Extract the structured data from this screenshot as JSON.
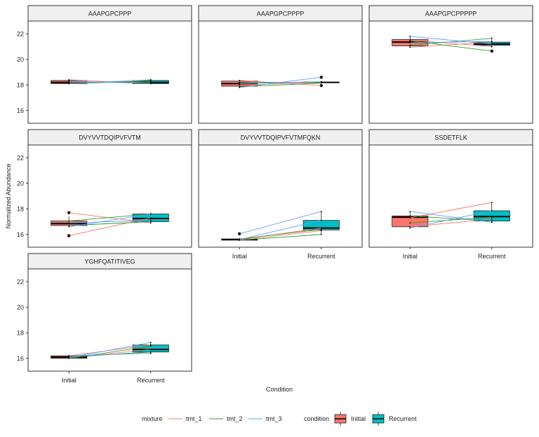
{
  "figure": {
    "xlabel": "Condition",
    "ylabel": "Normalized Abundance"
  },
  "legend": {
    "mixture_title": "mixture",
    "mixture": [
      {
        "name": "tmt_1",
        "color": "#f8766d"
      },
      {
        "name": "tmt_2",
        "color": "#2ca02c"
      },
      {
        "name": "tmt_3",
        "color": "#619cff"
      }
    ],
    "condition_title": "condition",
    "conditions": [
      {
        "name": "Initial",
        "color": "#f8766d"
      },
      {
        "name": "Recurrent",
        "color": "#00bfc4"
      }
    ]
  },
  "chart_data": [
    {
      "type": "boxplot",
      "title": "AAAPGPCPPP",
      "categories": [
        "Initial",
        "Recurrent"
      ],
      "ylim": [
        15,
        23
      ],
      "yticks": [
        16,
        18,
        20,
        22
      ],
      "boxes": [
        {
          "condition": "Initial",
          "min": 18.1,
          "q1": 18.1,
          "median": 18.2,
          "q3": 18.35,
          "max": 18.45,
          "outliers": []
        },
        {
          "condition": "Recurrent",
          "min": 18.05,
          "q1": 18.1,
          "median": 18.2,
          "q3": 18.35,
          "max": 18.45,
          "outliers": []
        }
      ],
      "lines": [
        {
          "mixture": "tmt_1",
          "from": 18.4,
          "to": 18.1
        },
        {
          "mixture": "tmt_1",
          "from": 18.2,
          "to": 18.3
        },
        {
          "mixture": "tmt_2",
          "from": 18.25,
          "to": 18.2
        },
        {
          "mixture": "tmt_2",
          "from": 18.1,
          "to": 18.3
        },
        {
          "mixture": "tmt_3",
          "from": 18.1,
          "to": 18.4
        },
        {
          "mixture": "tmt_3",
          "from": 18.3,
          "to": 18.1
        }
      ]
    },
    {
      "type": "boxplot",
      "title": "AAAPGPCPPPP",
      "categories": [
        "Initial",
        "Recurrent"
      ],
      "ylim": [
        15,
        23
      ],
      "yticks": [
        16,
        18,
        20,
        22
      ],
      "boxes": [
        {
          "condition": "Initial",
          "min": 17.75,
          "q1": 17.9,
          "median": 18.1,
          "q3": 18.3,
          "max": 18.4,
          "outliers": []
        },
        {
          "condition": "Recurrent",
          "min": 18.2,
          "q1": 18.2,
          "median": 18.2,
          "q3": 18.2,
          "max": 18.2,
          "outliers": [
            18.6,
            17.95
          ]
        }
      ],
      "lines": [
        {
          "mixture": "tmt_1",
          "from": 18.35,
          "to": 17.95
        },
        {
          "mixture": "tmt_1",
          "from": 18.0,
          "to": 18.2
        },
        {
          "mixture": "tmt_2",
          "from": 18.2,
          "to": 18.2
        },
        {
          "mixture": "tmt_2",
          "from": 17.85,
          "to": 18.15
        },
        {
          "mixture": "tmt_3",
          "from": 17.8,
          "to": 18.6
        },
        {
          "mixture": "tmt_3",
          "from": 18.1,
          "to": 18.25
        }
      ]
    },
    {
      "type": "boxplot",
      "title": "AAAPGPCPPPPP",
      "categories": [
        "Initial",
        "Recurrent"
      ],
      "ylim": [
        15,
        23
      ],
      "yticks": [
        16,
        18,
        20,
        22
      ],
      "boxes": [
        {
          "condition": "Initial",
          "min": 20.9,
          "q1": 21.05,
          "median": 21.35,
          "q3": 21.55,
          "max": 21.8,
          "outliers": []
        },
        {
          "condition": "Recurrent",
          "min": 20.9,
          "q1": 21.1,
          "median": 21.2,
          "q3": 21.35,
          "max": 21.7,
          "outliers": [
            20.65
          ]
        }
      ],
      "lines": [
        {
          "mixture": "tmt_1",
          "from": 21.5,
          "to": 21.0
        },
        {
          "mixture": "tmt_1",
          "from": 20.95,
          "to": 21.35
        },
        {
          "mixture": "tmt_2",
          "from": 21.1,
          "to": 21.65
        },
        {
          "mixture": "tmt_2",
          "from": 21.45,
          "to": 20.65
        },
        {
          "mixture": "tmt_3",
          "from": 21.8,
          "to": 21.2
        },
        {
          "mixture": "tmt_3",
          "from": 21.3,
          "to": 21.4
        }
      ]
    },
    {
      "type": "boxplot",
      "title": "DVYVVTDQIPVFVTM",
      "categories": [
        "Initial",
        "Recurrent"
      ],
      "ylim": [
        15,
        23
      ],
      "yticks": [
        16,
        18,
        20,
        22
      ],
      "boxes": [
        {
          "condition": "Initial",
          "min": 16.6,
          "q1": 16.7,
          "median": 16.85,
          "q3": 17.05,
          "max": 17.4,
          "outliers": [
            17.7,
            15.9
          ]
        },
        {
          "condition": "Recurrent",
          "min": 16.85,
          "q1": 17.0,
          "median": 17.25,
          "q3": 17.6,
          "max": 17.7,
          "outliers": []
        }
      ],
      "lines": [
        {
          "mixture": "tmt_1",
          "from": 17.7,
          "to": 16.9
        },
        {
          "mixture": "tmt_1",
          "from": 15.9,
          "to": 17.3
        },
        {
          "mixture": "tmt_2",
          "from": 17.05,
          "to": 17.6
        },
        {
          "mixture": "tmt_2",
          "from": 16.7,
          "to": 17.0
        },
        {
          "mixture": "tmt_3",
          "from": 16.9,
          "to": 17.1
        },
        {
          "mixture": "tmt_3",
          "from": 16.6,
          "to": 17.6
        }
      ]
    },
    {
      "type": "boxplot",
      "title": "DVYVVTDQIPVFVTMFQKN",
      "categories": [
        "Initial",
        "Recurrent"
      ],
      "ylim": [
        15,
        23
      ],
      "yticks": [
        16,
        18,
        20,
        22
      ],
      "boxes": [
        {
          "condition": "Initial",
          "min": 15.5,
          "q1": 15.55,
          "median": 15.6,
          "q3": 15.65,
          "max": 15.7,
          "outliers": [
            16.05
          ]
        },
        {
          "condition": "Recurrent",
          "min": 16.0,
          "q1": 16.35,
          "median": 16.5,
          "q3": 17.1,
          "max": 17.8,
          "outliers": []
        }
      ],
      "lines": [
        {
          "mixture": "tmt_1",
          "from": 15.6,
          "to": 16.5
        },
        {
          "mixture": "tmt_1",
          "from": 15.55,
          "to": 16.3
        },
        {
          "mixture": "tmt_2",
          "from": 15.55,
          "to": 16.0
        },
        {
          "mixture": "tmt_2",
          "from": 15.65,
          "to": 16.4
        },
        {
          "mixture": "tmt_3",
          "from": 16.05,
          "to": 17.8
        },
        {
          "mixture": "tmt_3",
          "from": 15.6,
          "to": 17.1
        }
      ]
    },
    {
      "type": "boxplot",
      "title": "SSDETFLK",
      "categories": [
        "Initial",
        "Recurrent"
      ],
      "ylim": [
        15,
        23
      ],
      "yticks": [
        16,
        18,
        20,
        22
      ],
      "boxes": [
        {
          "condition": "Initial",
          "min": 16.5,
          "q1": 16.6,
          "median": 17.35,
          "q3": 17.45,
          "max": 17.8,
          "outliers": []
        },
        {
          "condition": "Recurrent",
          "min": 16.9,
          "q1": 17.05,
          "median": 17.4,
          "q3": 17.85,
          "max": 18.5,
          "outliers": []
        }
      ],
      "lines": [
        {
          "mixture": "tmt_1",
          "from": 17.3,
          "to": 18.5
        },
        {
          "mixture": "tmt_1",
          "from": 16.6,
          "to": 17.2
        },
        {
          "mixture": "tmt_2",
          "from": 17.45,
          "to": 17.05
        },
        {
          "mixture": "tmt_2",
          "from": 16.9,
          "to": 17.35
        },
        {
          "mixture": "tmt_3",
          "from": 17.8,
          "to": 16.95
        },
        {
          "mixture": "tmt_3",
          "from": 16.5,
          "to": 17.85
        }
      ]
    },
    {
      "type": "boxplot",
      "title": "YGHFQATITIVEG",
      "categories": [
        "Initial",
        "Recurrent"
      ],
      "ylim": [
        15,
        23
      ],
      "yticks": [
        16,
        18,
        20,
        22
      ],
      "boxes": [
        {
          "condition": "Initial",
          "min": 16.0,
          "q1": 16.0,
          "median": 16.1,
          "q3": 16.2,
          "max": 16.3,
          "outliers": []
        },
        {
          "condition": "Recurrent",
          "min": 16.4,
          "q1": 16.5,
          "median": 16.7,
          "q3": 17.05,
          "max": 17.25,
          "outliers": []
        }
      ],
      "lines": [
        {
          "mixture": "tmt_1",
          "from": 16.2,
          "to": 17.05
        },
        {
          "mixture": "tmt_1",
          "from": 16.05,
          "to": 16.7
        },
        {
          "mixture": "tmt_2",
          "from": 16.1,
          "to": 16.5
        },
        {
          "mixture": "tmt_2",
          "from": 16.0,
          "to": 16.95
        },
        {
          "mixture": "tmt_3",
          "from": 16.2,
          "to": 16.4
        },
        {
          "mixture": "tmt_3",
          "from": 16.05,
          "to": 17.25
        }
      ]
    }
  ]
}
